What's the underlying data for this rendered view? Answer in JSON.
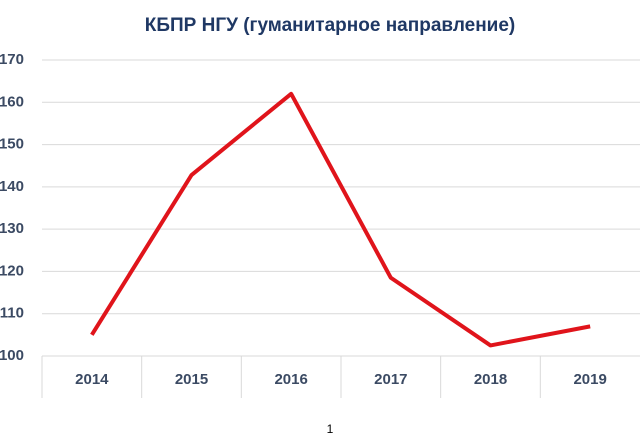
{
  "chart_data": {
    "type": "line",
    "title": "КБПР НГУ (гуманитарное направление)",
    "categories": [
      "2014",
      "2015",
      "2016",
      "2017",
      "2018",
      "2019"
    ],
    "values": [
      105,
      142.8,
      162,
      118.5,
      102.5,
      107
    ],
    "color": "#e0141b",
    "ylim": [
      100,
      170
    ],
    "yticks": [
      100,
      110,
      120,
      130,
      140,
      150,
      160,
      170
    ],
    "grid": true
  },
  "page_number": "1"
}
